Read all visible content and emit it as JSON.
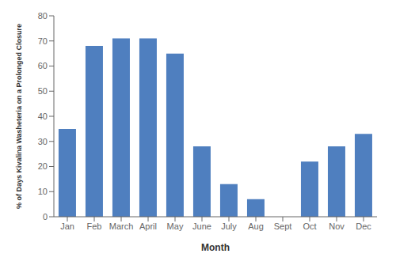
{
  "chart_data": {
    "type": "bar",
    "categories": [
      "Jan",
      "Feb",
      "March",
      "April",
      "May",
      "June",
      "July",
      "Aug",
      "Sept",
      "Oct",
      "Nov",
      "Dec"
    ],
    "values": [
      35,
      68,
      71,
      71,
      65,
      28,
      13,
      7,
      0,
      22,
      28,
      33
    ],
    "color": "#4f7fbf",
    "xlabel": "Month",
    "ylabel": "% of Days Kivalina Washeteria on a Prolonged Closure",
    "ylim": [
      0,
      80
    ],
    "yticks": [
      0,
      10,
      20,
      30,
      40,
      50,
      60,
      70,
      80
    ],
    "grid": false
  }
}
